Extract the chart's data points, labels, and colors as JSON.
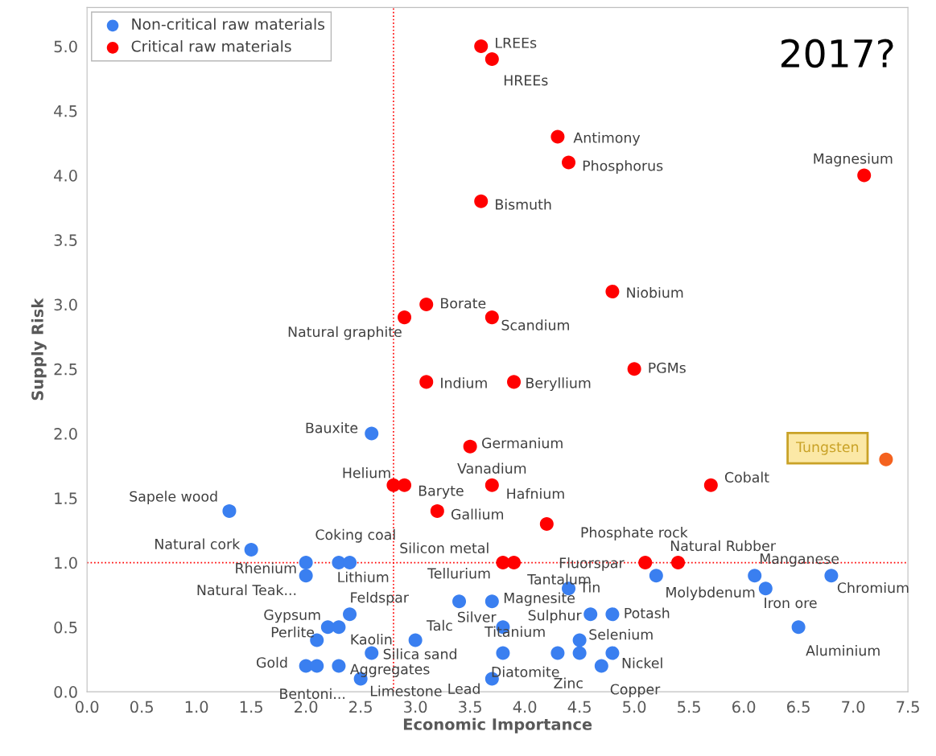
{
  "chart_data": {
    "type": "scatter",
    "xlabel": "Economic Importance",
    "ylabel": "Supply Risk",
    "xlim": [
      0.0,
      7.5
    ],
    "ylim": [
      0.0,
      5.3
    ],
    "xticks": [
      {
        "value": 0,
        "label": "0.0"
      },
      0.5,
      {
        "value": 1,
        "label": "1.0"
      },
      1.5,
      {
        "value": 2,
        "label": "2.0"
      },
      2.5,
      {
        "value": 3,
        "label": "3.0"
      },
      3.5,
      {
        "value": 4,
        "label": "4.0"
      },
      4.5,
      {
        "value": 5,
        "label": "5.0"
      },
      5.5,
      {
        "value": 6,
        "label": "6.0"
      },
      6.5,
      {
        "value": 7,
        "label": "7.0"
      },
      7.5
    ],
    "yticks": [
      {
        "value": 0,
        "label": "0.0"
      },
      0.5,
      {
        "value": 1,
        "label": "1.0"
      },
      1.5,
      {
        "value": 2,
        "label": "2.0"
      },
      2.5,
      {
        "value": 3,
        "label": "3.0"
      },
      3.5,
      {
        "value": 4,
        "label": "4.0"
      },
      4.5,
      {
        "value": 5,
        "label": "5.0"
      }
    ],
    "grid": false,
    "legend": "top left",
    "marker": "circle",
    "series": [
      {
        "name": "Non-critical raw materials",
        "color": "#3a7ff0",
        "x": [
          2.6,
          1.3,
          1.5,
          2.0,
          2.3,
          2.4,
          2.0,
          3.4,
          3.7,
          4.4,
          5.2,
          6.1,
          6.2,
          6.8,
          2.4,
          2.2,
          2.3,
          2.1,
          3.0,
          3.8,
          4.6,
          4.8,
          6.5,
          4.5,
          2.6,
          3.8,
          4.3,
          4.5,
          4.8,
          4.7,
          2.0,
          2.1,
          2.3,
          2.5,
          3.7
        ],
        "values": [
          2.0,
          1.4,
          1.1,
          1.0,
          1.0,
          1.0,
          0.9,
          0.7,
          0.7,
          0.8,
          0.9,
          0.9,
          0.8,
          0.9,
          0.6,
          0.5,
          0.5,
          0.4,
          0.4,
          0.5,
          0.6,
          0.6,
          0.5,
          0.4,
          0.3,
          0.3,
          0.3,
          0.3,
          0.3,
          0.2,
          0.2,
          0.2,
          0.2,
          0.1,
          0.1
        ]
      },
      {
        "name": "Critical raw materials",
        "color": "#ff0000",
        "x": [
          3.6,
          3.7,
          4.3,
          4.4,
          7.1,
          3.6,
          4.8,
          3.1,
          2.9,
          3.7,
          5.0,
          3.1,
          3.9,
          3.5,
          7.3,
          5.7,
          2.8,
          2.9,
          3.7,
          3.2,
          4.2,
          3.8,
          3.9,
          5.1,
          5.4
        ],
        "values": [
          5.0,
          4.9,
          4.3,
          4.1,
          4.0,
          3.8,
          3.1,
          3.0,
          2.9,
          2.9,
          2.5,
          2.4,
          2.4,
          1.9,
          1.8,
          1.6,
          1.6,
          1.6,
          1.6,
          1.4,
          1.3,
          1.0,
          1.0,
          1.0,
          1.0
        ],
        "colors": [
          "#ff0000",
          "#ff0000",
          "#ff0000",
          "#ff0000",
          "#ff0000",
          "#ff0000",
          "#ff0000",
          "#ff0000",
          "#ff0000",
          "#ff0000",
          "#ff0000",
          "#ff0000",
          "#ff0000",
          "#ff0000",
          "#f4621f",
          "#ff0000",
          "#ff0000",
          "#ff0000",
          "#ff0000",
          "#ff0000",
          "#ff0000",
          "#ff0000",
          "#ff0000",
          "#ff0000",
          "#ff0000"
        ]
      }
    ],
    "ref_lines": [
      {
        "axis": "x",
        "value": 2.8,
        "color": "#ff0000",
        "line_style": "dotted"
      },
      {
        "axis": "y",
        "value": 1.0,
        "color": "#ff0000",
        "line_style": "dotted"
      }
    ],
    "annotations": [
      "2017?",
      {
        "text": "Bauxite",
        "x": 2.6,
        "y": 2.0
      },
      {
        "text": "Sapele wood",
        "x": 1.3,
        "y": 1.4
      },
      {
        "text": "Natural cork",
        "x": 1.5,
        "y": 1.1
      },
      {
        "text": "Rhenium",
        "x": 2.0,
        "y": 1.0
      },
      {
        "text": "Coking coal",
        "x": 2.3,
        "y": 1.0
      },
      {
        "text": "Lithium",
        "x": 2.4,
        "y": 1.0
      },
      {
        "text": "Natural Teak...",
        "x": 2.0,
        "y": 0.9
      },
      {
        "text": "Tellurium",
        "x": 3.4,
        "y": 0.7
      },
      {
        "text": "Magnesite",
        "x": 3.7,
        "y": 0.7
      },
      {
        "text": "Tin",
        "x": 4.4,
        "y": 0.8
      },
      {
        "text": "Molybdenum",
        "x": 5.2,
        "y": 0.9
      },
      {
        "text": "Manganese",
        "x": 6.1,
        "y": 0.9
      },
      {
        "text": "Iron ore",
        "x": 6.2,
        "y": 0.8
      },
      {
        "text": "Chromium",
        "x": 6.8,
        "y": 0.9
      },
      {
        "text": "Feldspar",
        "x": 2.4,
        "y": 0.6
      },
      {
        "text": "Gypsum",
        "x": 2.2,
        "y": 0.5
      },
      {
        "text": "Kaolin",
        "x": 2.3,
        "y": 0.5
      },
      {
        "text": "Perlite",
        "x": 2.1,
        "y": 0.4
      },
      {
        "text": "Talc",
        "x": 3.0,
        "y": 0.4
      },
      {
        "text": "Silver",
        "x": 3.8,
        "y": 0.5
      },
      {
        "text": "Sulphur",
        "x": 4.6,
        "y": 0.6
      },
      {
        "text": "Potash",
        "x": 4.8,
        "y": 0.6
      },
      {
        "text": "Aluminium",
        "x": 6.5,
        "y": 0.5
      },
      {
        "text": "Selenium",
        "x": 4.5,
        "y": 0.4
      },
      {
        "text": "Silica sand",
        "x": 2.6,
        "y": 0.3
      },
      {
        "text": "Diatomite",
        "x": 3.8,
        "y": 0.3
      },
      {
        "text": "Titanium",
        "x": 4.3,
        "y": 0.3
      },
      {
        "text": "Zinc",
        "x": 4.5,
        "y": 0.3
      },
      {
        "text": "Nickel",
        "x": 4.8,
        "y": 0.3
      },
      {
        "text": "Copper",
        "x": 4.7,
        "y": 0.2
      },
      {
        "text": "Gold",
        "x": 2.0,
        "y": 0.2
      },
      {
        "text": "Bentoni...",
        "x": 2.1,
        "y": 0.2
      },
      {
        "text": "Aggregates",
        "x": 2.3,
        "y": 0.2
      },
      {
        "text": "Limestone",
        "x": 2.5,
        "y": 0.1
      },
      {
        "text": "Lead",
        "x": 3.7,
        "y": 0.1
      },
      {
        "text": "LREEs",
        "x": 3.6,
        "y": 5.0
      },
      {
        "text": "HREEs",
        "x": 3.7,
        "y": 4.9
      },
      {
        "text": "Antimony",
        "x": 4.3,
        "y": 4.3
      },
      {
        "text": "Phosphorus",
        "x": 4.4,
        "y": 4.1
      },
      {
        "text": "Magnesium",
        "x": 7.1,
        "y": 4.0
      },
      {
        "text": "Bismuth",
        "x": 3.6,
        "y": 3.8
      },
      {
        "text": "Niobium",
        "x": 4.8,
        "y": 3.1
      },
      {
        "text": "Borate",
        "x": 3.1,
        "y": 3.0
      },
      {
        "text": "Natural graphite",
        "x": 2.9,
        "y": 2.9
      },
      {
        "text": "Scandium",
        "x": 3.7,
        "y": 2.9
      },
      {
        "text": "PGMs",
        "x": 5.0,
        "y": 2.5
      },
      {
        "text": "Indium",
        "x": 3.1,
        "y": 2.4
      },
      {
        "text": "Beryllium",
        "x": 3.9,
        "y": 2.4
      },
      {
        "text": "Germanium",
        "x": 3.5,
        "y": 1.9
      },
      {
        "text": "Tungsten",
        "x": 7.3,
        "y": 1.8
      },
      {
        "text": "Cobalt",
        "x": 5.7,
        "y": 1.6
      },
      {
        "text": "Helium",
        "x": 2.8,
        "y": 1.6
      },
      {
        "text": "Baryte",
        "x": 2.9,
        "y": 1.6
      },
      {
        "text": "Vanadium",
        "x": 3.7,
        "y": 1.6
      },
      {
        "text": "Gallium",
        "x": 3.2,
        "y": 1.4
      },
      {
        "text": "Hafnium",
        "x": 4.2,
        "y": 1.3
      },
      {
        "text": "Fluorspar",
        "x": 4.2,
        "y": 1.3
      },
      {
        "text": "Silicon metal",
        "x": 3.8,
        "y": 1.0
      },
      {
        "text": "Tantalum",
        "x": 3.9,
        "y": 1.0
      },
      {
        "text": "Phosphate rock",
        "x": 5.1,
        "y": 1.0
      },
      {
        "text": "Natural Rubber",
        "x": 5.4,
        "y": 1.0
      }
    ]
  }
}
